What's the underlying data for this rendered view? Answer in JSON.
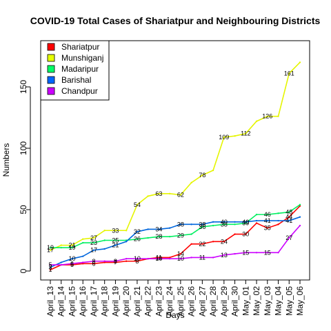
{
  "chart_data": {
    "type": "line",
    "title": "COVID-19 Total Cases of Shariatpur and Neighbouring Districts",
    "xlabel": "Days",
    "ylabel": "Numbers",
    "ylim": [
      0,
      170
    ],
    "yticks": [
      0,
      50,
      100,
      150
    ],
    "grid": false,
    "legend_position": "top-left",
    "categories": [
      "April_13",
      "April_14",
      "April_15",
      "April_16",
      "April_17",
      "April_18",
      "April_19",
      "April_20",
      "April_21",
      "April_22",
      "April_23",
      "April_24",
      "April_25",
      "April_26",
      "April_27",
      "April_28",
      "April_29",
      "April_30",
      "May_01",
      "May_02",
      "May_03",
      "May_04",
      "May_05",
      "May_06"
    ],
    "series": [
      {
        "name": "Shariatpur",
        "color": "#ff0000",
        "marker_color": "#ff0000",
        "values": [
          1,
          5,
          5,
          6,
          6,
          7,
          7,
          8,
          8,
          10,
          11,
          11,
          14,
          22,
          22,
          24,
          24,
          30,
          30,
          39,
          35,
          38,
          44,
          53
        ],
        "labels": [
          {
            "i": 0,
            "t": "1"
          },
          {
            "i": 2,
            "t": "5"
          },
          {
            "i": 4,
            "t": "6"
          },
          {
            "i": 6,
            "t": "7"
          },
          {
            "i": 8,
            "t": "8"
          },
          {
            "i": 10,
            "t": "11"
          },
          {
            "i": 12,
            "t": "14"
          },
          {
            "i": 14,
            "t": "22"
          },
          {
            "i": 16,
            "t": "24"
          },
          {
            "i": 18,
            "t": "30"
          },
          {
            "i": 20,
            "t": "35"
          },
          {
            "i": 22,
            "t": "44"
          }
        ]
      },
      {
        "name": "Munshiganj",
        "color": "#e5f500",
        "marker_color": "#e5ff00",
        "values": [
          17,
          21,
          21,
          26,
          27,
          33,
          33,
          33,
          54,
          61,
          63,
          63,
          62,
          72,
          78,
          82,
          109,
          110,
          112,
          122,
          126,
          126,
          161,
          170
        ],
        "labels": [
          {
            "i": 0,
            "t": "17"
          },
          {
            "i": 2,
            "t": "21"
          },
          {
            "i": 4,
            "t": "27"
          },
          {
            "i": 6,
            "t": "33"
          },
          {
            "i": 8,
            "t": "54"
          },
          {
            "i": 10,
            "t": "63"
          },
          {
            "i": 12,
            "t": "62"
          },
          {
            "i": 14,
            "t": "78"
          },
          {
            "i": 16,
            "t": "109"
          },
          {
            "i": 18,
            "t": "112"
          },
          {
            "i": 20,
            "t": "126"
          },
          {
            "i": 22,
            "t": "161"
          }
        ]
      },
      {
        "name": "Madaripur",
        "color": "#00f060",
        "marker_color": "#00ff66",
        "values": [
          19,
          19,
          19,
          23,
          23,
          25,
          25,
          25,
          26,
          27,
          28,
          28,
          29,
          30,
          36,
          37,
          38,
          38,
          39,
          46,
          46,
          47,
          48,
          54
        ],
        "labels": [
          {
            "i": 0,
            "t": "19"
          },
          {
            "i": 2,
            "t": "19"
          },
          {
            "i": 4,
            "t": "23"
          },
          {
            "i": 6,
            "t": "25"
          },
          {
            "i": 8,
            "t": "26"
          },
          {
            "i": 10,
            "t": "28"
          },
          {
            "i": 12,
            "t": "29"
          },
          {
            "i": 14,
            "t": "36"
          },
          {
            "i": 16,
            "t": "38"
          },
          {
            "i": 18,
            "t": "39"
          },
          {
            "i": 20,
            "t": "46"
          },
          {
            "i": 22,
            "t": "48"
          }
        ]
      },
      {
        "name": "Barishal",
        "color": "#0066dd",
        "marker_color": "#0066ff",
        "values": [
          3,
          7,
          10,
          12,
          17,
          18,
          21,
          24,
          32,
          34,
          34,
          35,
          38,
          38,
          38,
          40,
          40,
          40,
          40,
          41,
          41,
          41,
          41,
          44
        ],
        "labels": [
          {
            "i": 0,
            "t": "3"
          },
          {
            "i": 2,
            "t": "10"
          },
          {
            "i": 4,
            "t": "17"
          },
          {
            "i": 6,
            "t": "21"
          },
          {
            "i": 8,
            "t": "32"
          },
          {
            "i": 10,
            "t": "34"
          },
          {
            "i": 12,
            "t": "38"
          },
          {
            "i": 14,
            "t": "38"
          },
          {
            "i": 16,
            "t": "40"
          },
          {
            "i": 18,
            "t": "40"
          },
          {
            "i": 20,
            "t": "41"
          },
          {
            "i": 22,
            "t": "41"
          }
        ]
      },
      {
        "name": "Chandpur",
        "color": "#cc00ff",
        "marker_color": "#cc00ff",
        "values": [
          5,
          5,
          6,
          7,
          8,
          8,
          8,
          10,
          10,
          10,
          10,
          10,
          10,
          11,
          11,
          11,
          13,
          14,
          15,
          15,
          15,
          15,
          27,
          37
        ],
        "labels": [
          {
            "i": 0,
            "t": "5"
          },
          {
            "i": 2,
            "t": "6"
          },
          {
            "i": 4,
            "t": "8"
          },
          {
            "i": 6,
            "t": "8"
          },
          {
            "i": 8,
            "t": "10"
          },
          {
            "i": 10,
            "t": "10"
          },
          {
            "i": 12,
            "t": "10"
          },
          {
            "i": 14,
            "t": "11"
          },
          {
            "i": 16,
            "t": "13"
          },
          {
            "i": 18,
            "t": "15"
          },
          {
            "i": 20,
            "t": "15"
          },
          {
            "i": 22,
            "t": "27"
          }
        ]
      }
    ]
  }
}
